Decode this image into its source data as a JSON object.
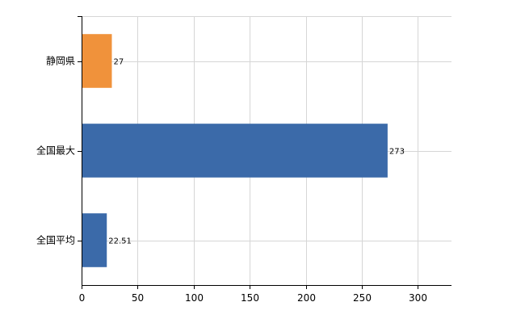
{
  "chart_data": {
    "type": "bar",
    "orientation": "horizontal",
    "categories": [
      "静岡県",
      "全国最大",
      "全国平均"
    ],
    "values": [
      27,
      273,
      22.51
    ],
    "value_labels": [
      "27",
      "273",
      "22.51"
    ],
    "bar_colors": [
      "#f0923b",
      "#3b6aa9",
      "#3b6aa9"
    ],
    "xlim": [
      0,
      330
    ],
    "xticks": [
      0,
      50,
      100,
      150,
      200,
      250,
      300
    ],
    "grid": true,
    "title": "",
    "xlabel": "",
    "ylabel": ""
  }
}
